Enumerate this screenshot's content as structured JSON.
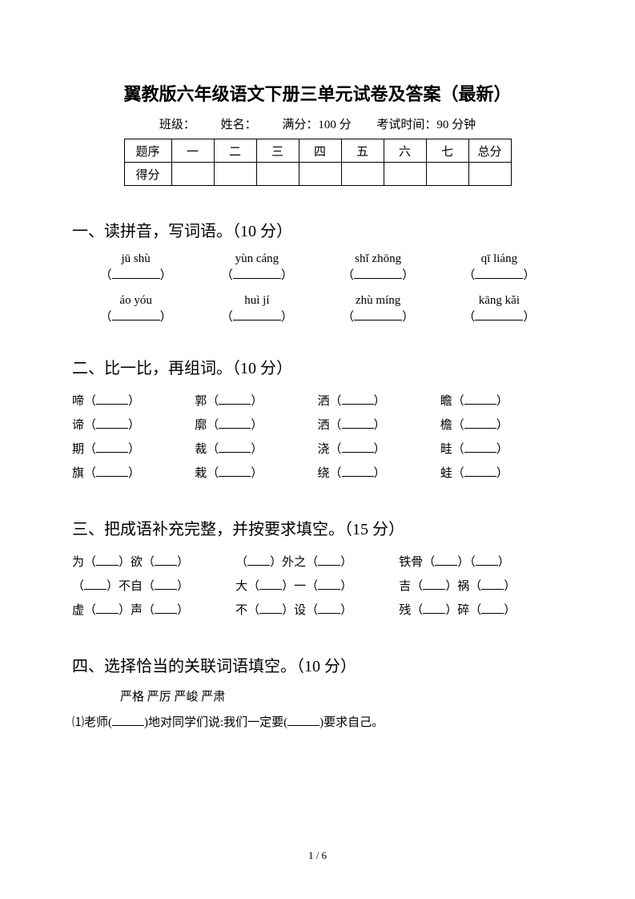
{
  "title": "翼教版六年级语文下册三单元试卷及答案（最新）",
  "info": {
    "class_label": "班级：",
    "name_label": "姓名：",
    "full_score": "满分：100 分",
    "exam_time": "考试时间：90 分钟"
  },
  "score_table": {
    "row1_label": "题序",
    "cols": [
      "一",
      "二",
      "三",
      "四",
      "五",
      "六",
      "七",
      "总分"
    ],
    "row2_label": "得分"
  },
  "q1": {
    "heading": "一、读拼音，写词语。（10 分）",
    "row1": [
      "jū shù",
      "yùn cáng",
      "shǐ zhōng",
      "qī liáng"
    ],
    "row2": [
      "áo yóu",
      "huì jí",
      "zhù míng",
      "kāng kǎi"
    ]
  },
  "q2": {
    "heading": "二、比一比，再组词。（10 分）",
    "rows": [
      [
        "啼",
        "郭",
        "洒",
        "瞻"
      ],
      [
        "谛",
        "廓",
        "洒",
        "檐"
      ],
      [
        "期",
        "裁",
        "浇",
        "畦"
      ],
      [
        "旗",
        "栽",
        "绕",
        "蛙"
      ]
    ]
  },
  "q3": {
    "heading": "三、把成语补充完整，并按要求填空。（15 分）",
    "rows": [
      [
        {
          "pre": "为（",
          "mid": "）欲（",
          "post": "）"
        },
        {
          "pre": "（",
          "mid": "）外之（",
          "post": "）"
        },
        {
          "pre": "铁骨（",
          "mid": "）（",
          "post": "）"
        }
      ],
      [
        {
          "pre": "（",
          "mid": "）不自（",
          "post": "）"
        },
        {
          "pre": "大（",
          "mid": "）一（",
          "post": "）"
        },
        {
          "pre": "吉（",
          "mid": "）祸（",
          "post": "）"
        }
      ],
      [
        {
          "pre": "虚（",
          "mid": "）声（",
          "post": "）"
        },
        {
          "pre": "不（",
          "mid": "）设（",
          "post": "）"
        },
        {
          "pre": "残（",
          "mid": "）碎（",
          "post": "）"
        }
      ]
    ]
  },
  "q4": {
    "heading": "四、选择恰当的关联词语填空。（10 分）",
    "words": "严格   严厉   严峻   严肃",
    "line1_a": "⑴老师(",
    "line1_b": ")地对同学们说:我们一定要(",
    "line1_c": ")要求自己。"
  },
  "footer": "1 / 6"
}
